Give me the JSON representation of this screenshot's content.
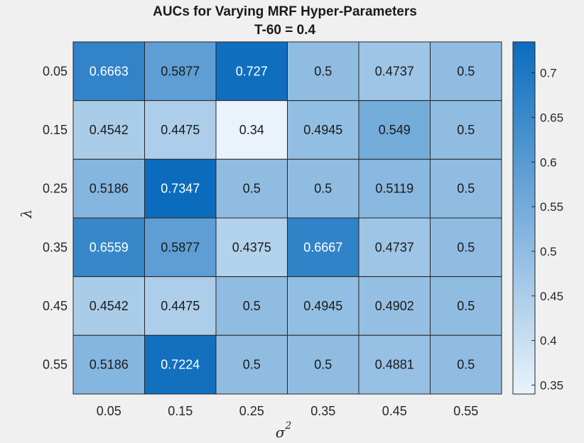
{
  "chart_data": {
    "type": "heatmap",
    "title": "AUCs for Varying MRF Hyper-Parameters",
    "subtitle": "T-60 = 0.4",
    "xlabel": "σ",
    "xlabel_superscript": "2",
    "ylabel": "λ",
    "x_categories": [
      "0.05",
      "0.15",
      "0.25",
      "0.35",
      "0.45",
      "0.55"
    ],
    "y_categories": [
      "0.05",
      "0.15",
      "0.25",
      "0.35",
      "0.45",
      "0.55"
    ],
    "values": [
      [
        "0.6663",
        "0.5877",
        "0.727",
        "0.5",
        "0.4737",
        "0.5"
      ],
      [
        "0.4542",
        "0.4475",
        "0.34",
        "0.4945",
        "0.549",
        "0.5"
      ],
      [
        "0.5186",
        "0.7347",
        "0.5",
        "0.5",
        "0.5119",
        "0.5"
      ],
      [
        "0.6559",
        "0.5877",
        "0.4375",
        "0.6667",
        "0.4737",
        "0.5"
      ],
      [
        "0.4542",
        "0.4475",
        "0.5",
        "0.4945",
        "0.4902",
        "0.5"
      ],
      [
        "0.5186",
        "0.7224",
        "0.5",
        "0.5",
        "0.4881",
        "0.5"
      ]
    ],
    "colorbar": {
      "min": 0.34,
      "max": 0.7347,
      "ticks": [
        "0.35",
        "0.4",
        "0.45",
        "0.5",
        "0.55",
        "0.6",
        "0.65",
        "0.7"
      ],
      "color_low": "#eaf3fb",
      "color_high": "#0b6cbd"
    },
    "grid": true
  }
}
